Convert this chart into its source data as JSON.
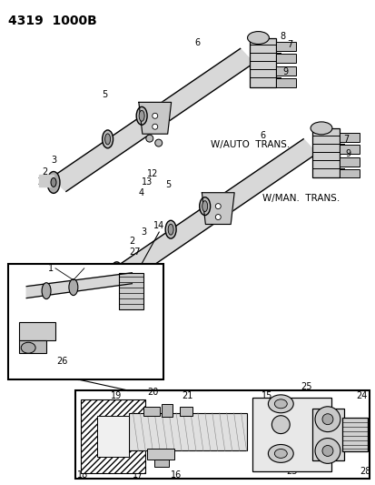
{
  "title": "4319  1000B",
  "bg_color": "#ffffff",
  "fig_width": 4.14,
  "fig_height": 5.33,
  "dpi": 100,
  "label_auto": "W/AUTO  TRANS.",
  "label_man": "W/MAN.  TRANS.",
  "line_color": "#000000",
  "text_color": "#000000",
  "title_fontsize": 10,
  "label_fontsize": 7.0,
  "small_fontsize": 6.5
}
